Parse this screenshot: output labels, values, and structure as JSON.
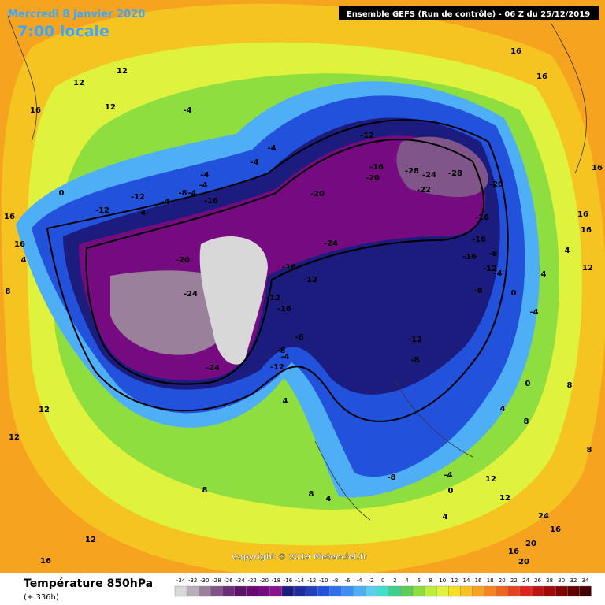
{
  "header": {
    "date": "Mercredi 8 janvier 2020",
    "time": "7:00 locale",
    "run": "Ensemble GEFS  (Run de contrôle)  - 06 Z du 25/12/2019"
  },
  "footer": {
    "title": "Température 850hPa",
    "lead": "(+ 336h)",
    "copyright": "Copyright © 2019 Meteociel.fr"
  },
  "colorbar": {
    "ticks": [
      -34,
      -32,
      -30,
      -28,
      -26,
      -24,
      -22,
      -20,
      -18,
      -16,
      -14,
      -12,
      -10,
      -8,
      -6,
      -4,
      -2,
      0,
      2,
      4,
      6,
      8,
      10,
      12,
      14,
      16,
      18,
      20,
      22,
      24,
      26,
      28,
      30,
      32,
      34
    ],
    "colors": [
      "#d8d8d8",
      "#b8aeb8",
      "#9a809a",
      "#80568a",
      "#6c2e78",
      "#5c1266",
      "#660a72",
      "#760a80",
      "#88128e",
      "#1c1c7e",
      "#1e2c9e",
      "#2040be",
      "#2252dc",
      "#3070ee",
      "#3e8ef6",
      "#4eaef6",
      "#5ccef0",
      "#3ee0cc",
      "#40d08e",
      "#5ecc5c",
      "#8ede40",
      "#bcee3e",
      "#def23e",
      "#f6e020",
      "#f6c420",
      "#f6a420",
      "#f68420",
      "#ee6420",
      "#e64420",
      "#de2420",
      "#c01212",
      "#a00a0a",
      "#820202",
      "#620000",
      "#420000"
    ]
  },
  "map": {
    "labels": [
      16,
      16,
      12,
      12,
      12,
      16,
      -4,
      -4,
      -4,
      -4,
      -4,
      -8,
      -4,
      -12,
      -16,
      -4,
      -4,
      -12,
      0,
      16,
      -12,
      -16,
      -20,
      -28,
      -24,
      -28,
      -22,
      -20,
      -20,
      -16,
      -16,
      -24,
      -20,
      -16,
      -8,
      -12,
      -4,
      -16,
      -12,
      -8,
      0,
      4,
      4,
      12,
      16,
      16,
      16,
      -24,
      -12,
      -16,
      -8,
      -8,
      -4,
      -12,
      -24,
      -12,
      -8,
      -4,
      0,
      4,
      8,
      8,
      8,
      12,
      12,
      -8,
      -4,
      0,
      4,
      4,
      8,
      4,
      8,
      12,
      16,
      12,
      12,
      8,
      4,
      16,
      24,
      16,
      20,
      20,
      16
    ]
  }
}
